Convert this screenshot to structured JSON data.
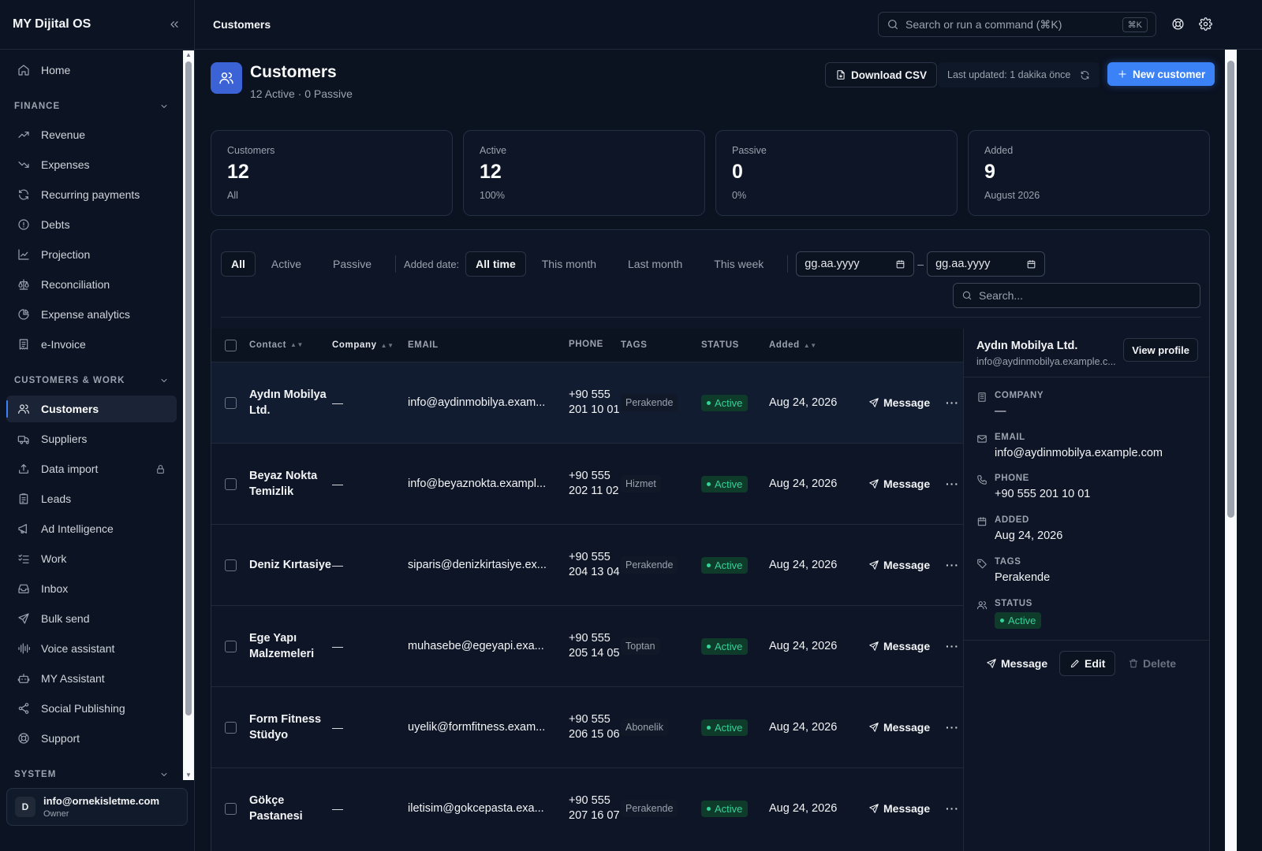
{
  "app": {
    "title": "MY Dijital OS"
  },
  "sidebar": {
    "home": "Home",
    "finance": {
      "title": "FINANCE",
      "items": [
        {
          "label": "Revenue",
          "icon": "trending-up-icon"
        },
        {
          "label": "Expenses",
          "icon": "trending-down-icon"
        },
        {
          "label": "Recurring payments",
          "icon": "refresh-icon"
        },
        {
          "label": "Debts",
          "icon": "alert-circle-icon"
        },
        {
          "label": "Projection",
          "icon": "line-chart-icon"
        },
        {
          "label": "Reconciliation",
          "icon": "scale-icon"
        },
        {
          "label": "Expense analytics",
          "icon": "pie-chart-icon"
        },
        {
          "label": "e-Invoice",
          "icon": "receipt-icon"
        }
      ]
    },
    "work": {
      "title": "CUSTOMERS & WORK",
      "items": [
        {
          "label": "Customers",
          "icon": "users-icon",
          "active": true
        },
        {
          "label": "Suppliers",
          "icon": "truck-icon"
        },
        {
          "label": "Data import",
          "icon": "upload-icon",
          "locked": true
        },
        {
          "label": "Leads",
          "icon": "clipboard-icon"
        },
        {
          "label": "Ad Intelligence",
          "icon": "megaphone-icon"
        },
        {
          "label": "Work",
          "icon": "list-checks-icon"
        },
        {
          "label": "Inbox",
          "icon": "inbox-icon"
        },
        {
          "label": "Bulk send",
          "icon": "send-icon"
        },
        {
          "label": "Voice assistant",
          "icon": "audio-lines-icon"
        },
        {
          "label": "MY Assistant",
          "icon": "bot-icon"
        },
        {
          "label": "Social Publishing",
          "icon": "share-icon"
        },
        {
          "label": "Support",
          "icon": "life-buoy-icon"
        }
      ]
    },
    "system": {
      "title": "SYSTEM"
    },
    "user": {
      "initial": "D",
      "email": "info@ornekisletme.com",
      "role": "Owner"
    }
  },
  "topbar": {
    "title": "Customers",
    "search_placeholder": "Search or run a command (⌘K)",
    "search_kbd": "⌘K"
  },
  "header": {
    "title": "Customers",
    "subtitle": "12 Active · 0 Passive",
    "download_csv": "Download CSV",
    "last_updated": "Last updated: 1 dakika önce",
    "new_customer": "New customer"
  },
  "stats": [
    {
      "label": "Customers",
      "value": "12",
      "sub": "All"
    },
    {
      "label": "Active",
      "value": "12",
      "sub": "100%"
    },
    {
      "label": "Passive",
      "value": "0",
      "sub": "0%"
    },
    {
      "label": "Added",
      "value": "9",
      "sub": "August 2026"
    }
  ],
  "filters": {
    "status": [
      "All",
      "Active",
      "Passive"
    ],
    "date_label": "Added date:",
    "date_options": [
      "All time",
      "This month",
      "Last month",
      "This week"
    ],
    "date_from": "gg.aa.yyyy",
    "date_to": "gg.aa.yyyy",
    "date_separator": "–",
    "search_placeholder": "Search..."
  },
  "table": {
    "columns": {
      "contact": "Contact",
      "company": "Company",
      "email": "EMAIL",
      "phone": "PHONE",
      "tags": "TAGS",
      "status": "STATUS",
      "added": "Added"
    },
    "message_label": "Message",
    "more_label": "···",
    "rows": [
      {
        "contact": "Aydın Mobilya Ltd.",
        "company": "—",
        "email": "info@aydinmobilya.exam...",
        "phone": "+90 555 201 10 01",
        "tag": "Perakende",
        "status": "Active",
        "added": "Aug 24, 2026"
      },
      {
        "contact": "Beyaz Nokta Temizlik",
        "company": "—",
        "email": "info@beyaznokta.exampl...",
        "phone": "+90 555 202 11 02",
        "tag": "Hizmet",
        "status": "Active",
        "added": "Aug 24, 2026"
      },
      {
        "contact": "Deniz Kırtasiye",
        "company": "—",
        "email": "siparis@denizkirtasiye.ex...",
        "phone": "+90 555 204 13 04",
        "tag": "Perakende",
        "status": "Active",
        "added": "Aug 24, 2026"
      },
      {
        "contact": "Ege Yapı Malzemeleri",
        "company": "—",
        "email": "muhasebe@egeyapi.exa...",
        "phone": "+90 555 205 14 05",
        "tag": "Toptan",
        "status": "Active",
        "added": "Aug 24, 2026"
      },
      {
        "contact": "Form Fitness Stüdyo",
        "company": "—",
        "email": "uyelik@formfitness.exam...",
        "phone": "+90 555 206 15 06",
        "tag": "Abonelik",
        "status": "Active",
        "added": "Aug 24, 2026"
      },
      {
        "contact": "Gökçe Pastanesi",
        "company": "—",
        "email": "iletisim@gokcepasta.exa...",
        "phone": "+90 555 207 16 07",
        "tag": "Perakende",
        "status": "Active",
        "added": "Aug 24, 2026"
      }
    ]
  },
  "detail": {
    "name": "Aydın Mobilya Ltd.",
    "email_short": "info@aydinmobilya.example.c...",
    "view_profile": "View profile",
    "company_label": "COMPANY",
    "company": "—",
    "email_label": "EMAIL",
    "email": "info@aydinmobilya.example.com",
    "phone_label": "PHONE",
    "phone": "+90 555 201 10 01",
    "added_label": "ADDED",
    "added": "Aug 24, 2026",
    "tags_label": "TAGS",
    "tags": "Perakende",
    "status_label": "STATUS",
    "status": "Active",
    "message": "Message",
    "edit": "Edit",
    "delete": "Delete"
  }
}
